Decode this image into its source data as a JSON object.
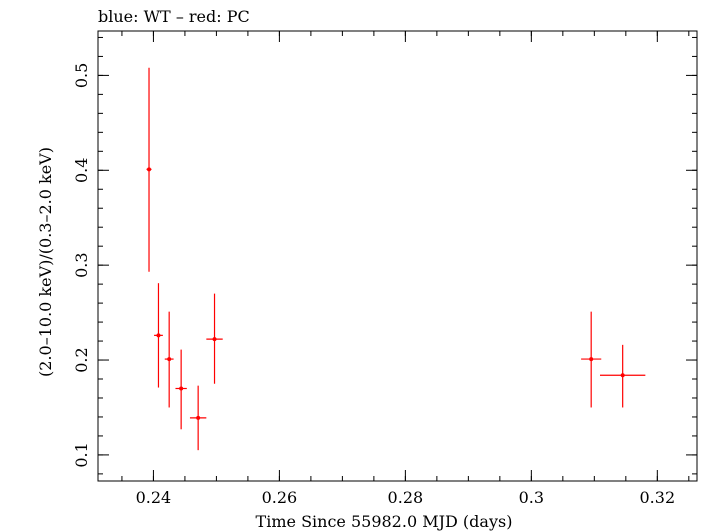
{
  "chart_data": {
    "type": "scatter",
    "title": "blue: WT – red: PC",
    "xlabel": "Time Since 55982.0 MJD (days)",
    "ylabel": "(2.0–10.0 keV)/(0.3–2.0 keV)",
    "xlim": [
      0.2312,
      0.3263
    ],
    "ylim": [
      0.0725,
      0.5468
    ],
    "x_ticks": [
      0.24,
      0.26,
      0.28,
      0.3,
      0.32
    ],
    "x_tick_labels": [
      "0.24",
      "0.26",
      "0.28",
      "0.3",
      "0.32"
    ],
    "y_ticks": [
      0.1,
      0.2,
      0.3,
      0.4,
      0.5
    ],
    "y_tick_labels": [
      "0.1",
      "0.2",
      "0.3",
      "0.4",
      "0.5"
    ],
    "grid": false,
    "colors": {
      "pc": "#ff0000",
      "axis": "#000000"
    },
    "series": [
      {
        "points": [
          {
            "x": 0.2393,
            "xerr": 0.0004,
            "y": 0.401,
            "ylow": 0.293,
            "yhigh": 0.508
          },
          {
            "x": 0.2408,
            "xerr": 0.0007,
            "y": 0.226,
            "ylow": 0.171,
            "yhigh": 0.281
          },
          {
            "x": 0.2425,
            "xerr": 0.0007,
            "y": 0.201,
            "ylow": 0.15,
            "yhigh": 0.251
          },
          {
            "x": 0.2444,
            "xerr": 0.0009,
            "y": 0.17,
            "ylow": 0.127,
            "yhigh": 0.211
          },
          {
            "x": 0.2471,
            "xerr": 0.0013,
            "y": 0.139,
            "ylow": 0.105,
            "yhigh": 0.173
          },
          {
            "x": 0.2497,
            "xerr": 0.0013,
            "y": 0.222,
            "ylow": 0.175,
            "yhigh": 0.27
          },
          {
            "x": 0.3095,
            "xerr": 0.0016,
            "y": 0.201,
            "ylow": 0.15,
            "yhigh": 0.251
          },
          {
            "x": 0.3145,
            "xerr": 0.0036,
            "y": 0.184,
            "ylow": 0.15,
            "yhigh": 0.216
          }
        ]
      }
    ]
  }
}
